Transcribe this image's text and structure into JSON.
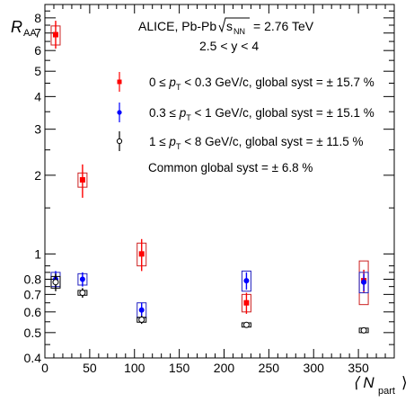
{
  "chart_data": {
    "type": "scatter",
    "x_scale": "linear",
    "y_scale": "log",
    "xlim": [
      0,
      390
    ],
    "ylim": [
      0.4,
      9
    ],
    "xlabel": "⟨ N",
    "xlabel_sub": "part",
    "xlabel_end": "⟩",
    "ylabel": "R",
    "ylabel_sub": "AA",
    "x_ticks": [
      0,
      50,
      100,
      150,
      200,
      250,
      300,
      350
    ],
    "x_tick_labels": [
      "0",
      "50",
      "100",
      "150",
      "200",
      "250",
      "300",
      "350"
    ],
    "y_ticks": [
      0.4,
      0.5,
      0.6,
      0.7,
      0.8,
      1,
      2,
      3,
      4,
      5,
      6,
      7,
      8
    ],
    "y_tick_labels": [
      "0.4",
      "0.5",
      "0.6",
      "0.7",
      "0.8",
      "1",
      "2",
      "3",
      "4",
      "5",
      "6",
      "7",
      "8"
    ],
    "title_line1": "ALICE, Pb-Pb",
    "title_sqrt": "s",
    "title_sqrt_sub": "NN",
    "title_energy": "= 2.76 TeV",
    "title_line2": "2.5 < y < 4",
    "legend_placement": "top-right",
    "common_syst": "Common global syst = ± 6.8 %",
    "series": [
      {
        "name": "0 ≤ p_T < 0.3 GeV/c, global syst = ± 15.7 %",
        "legend_a": "0 ≤ ",
        "legend_b": " < 0.3 GeV/c, global syst = ± 15.7 %",
        "color": "#ff0000",
        "box_color": "#cc2020",
        "marker": "square-filled",
        "points": [
          {
            "x": 12,
            "y": 6.9,
            "stat": [
              0.9,
              0.8
            ],
            "syst": [
              0.55,
              0.6
            ]
          },
          {
            "x": 42,
            "y": 1.92,
            "stat": [
              0.28,
              0.28
            ],
            "syst": [
              0.12,
              0.12
            ]
          },
          {
            "x": 108,
            "y": 1.0,
            "stat": [
              0.14,
              0.14
            ],
            "syst": [
              0.1,
              0.1
            ]
          },
          {
            "x": 225,
            "y": 0.65,
            "stat": [
              0.06,
              0.06
            ],
            "syst": [
              0.05,
              0.05
            ]
          },
          {
            "x": 356,
            "y": 0.79,
            "stat": [
              0.08,
              0.08
            ],
            "syst": [
              0.15,
              0.15
            ]
          }
        ]
      },
      {
        "name": "0.3 ≤ p_T < 1 GeV/c, global syst = ± 15.1 %",
        "legend_a": "0.3 ≤ ",
        "legend_b": " < 1 GeV/c, global syst = ± 15.1 %",
        "color": "#0000ff",
        "box_color": "#2020c0",
        "marker": "circle-filled",
        "points": [
          {
            "x": 12,
            "y": 0.8,
            "stat": [
              0.06,
              0.06
            ],
            "syst": [
              0.05,
              0.05
            ]
          },
          {
            "x": 42,
            "y": 0.8,
            "stat": [
              0.05,
              0.05
            ],
            "syst": [
              0.04,
              0.04
            ]
          },
          {
            "x": 108,
            "y": 0.61,
            "stat": [
              0.04,
              0.04
            ],
            "syst": [
              0.04,
              0.04
            ]
          },
          {
            "x": 225,
            "y": 0.79,
            "stat": [
              0.06,
              0.06
            ],
            "syst": [
              0.07,
              0.07
            ]
          },
          {
            "x": 356,
            "y": 0.78,
            "stat": [
              0.06,
              0.06
            ],
            "syst": [
              0.07,
              0.07
            ]
          }
        ]
      },
      {
        "name": "1 ≤ p_T < 8 GeV/c, global syst = ± 11.5 %",
        "legend_a": "1 ≤ ",
        "legend_b": " < 8 GeV/c, global syst = ± 11.5 %",
        "color": "#000000",
        "box_color": "#000000",
        "marker": "circle-open",
        "points": [
          {
            "x": 12,
            "y": 0.78,
            "stat": [
              0.06,
              0.06
            ],
            "syst": [
              0.04,
              0.04
            ]
          },
          {
            "x": 42,
            "y": 0.71,
            "stat": [
              0.03,
              0.03
            ],
            "syst": [
              0.015,
              0.015
            ]
          },
          {
            "x": 108,
            "y": 0.56,
            "stat": [
              0.02,
              0.02
            ],
            "syst": [
              0.012,
              0.012
            ]
          },
          {
            "x": 225,
            "y": 0.535,
            "stat": [
              0.012,
              0.012
            ],
            "syst": [
              0.01,
              0.01
            ]
          },
          {
            "x": 356,
            "y": 0.51,
            "stat": [
              0.01,
              0.01
            ],
            "syst": [
              0.01,
              0.01
            ]
          }
        ]
      }
    ]
  }
}
